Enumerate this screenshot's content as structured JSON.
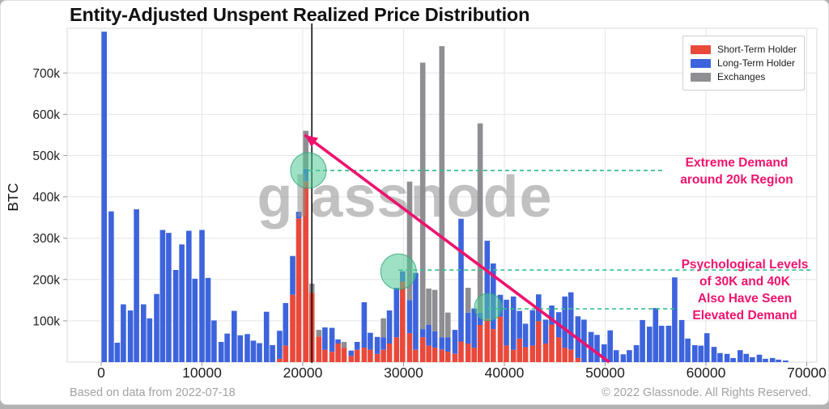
{
  "title": "Entity-Adjusted Unspent Realized Price Distribution",
  "watermark": "glassnode",
  "footer": {
    "left": "Based on data from 2022-07-18",
    "right": "© 2022 Glassnode. All Rights Reserved."
  },
  "legend": [
    {
      "label": "Short-Term Holder",
      "color": "#e9493b"
    },
    {
      "label": "Long-Term Holder",
      "color": "#3d64dd"
    },
    {
      "label": "Exchanges",
      "color": "#8e8e93"
    }
  ],
  "annotations": [
    {
      "text": "Extreme Demand\naround 20k Region"
    },
    {
      "text": "Psychological Levels\nof 30K and 40K\nAlso Have Seen\nElevated Demand"
    }
  ],
  "colors": {
    "short_term": "#e9493b",
    "long_term": "#3d64dd",
    "exchanges": "#8e8e93",
    "pink_accent": "#ef116e",
    "teal_accent": "#35c08d",
    "gridline": "#e5e5e5",
    "frame": "#d9d9d9",
    "tick_text": "#1e1e1e",
    "watermark": "#8f8f8f"
  },
  "chart_data": {
    "type": "bar",
    "stacked": true,
    "ylabel": "BTC",
    "xlabel": "",
    "legend_position": "top-right",
    "grid": true,
    "xlim": [
      -3400,
      71100
    ],
    "ylim_kbtc": [
      0,
      810
    ],
    "x_ticks": [
      {
        "v": 0,
        "label": "0"
      },
      {
        "v": 10000,
        "label": "10000"
      },
      {
        "v": 20000,
        "label": "20000"
      },
      {
        "v": 30000,
        "label": "30000"
      },
      {
        "v": 40000,
        "label": "40000"
      },
      {
        "v": 50000,
        "label": "50000"
      },
      {
        "v": 60000,
        "label": "60000"
      },
      {
        "v": 70000,
        "label": "70000"
      }
    ],
    "y_ticks_kbtc": [
      {
        "v": 100,
        "label": "100k"
      },
      {
        "v": 200,
        "label": "200k"
      },
      {
        "v": 300,
        "label": "300k"
      },
      {
        "v": 400,
        "label": "400k"
      },
      {
        "v": 500,
        "label": "500k"
      },
      {
        "v": 600,
        "label": "600k"
      },
      {
        "v": 700,
        "label": "700k"
      }
    ],
    "series_names": [
      "Short-Term Holder",
      "Long-Term Holder",
      "Exchanges"
    ],
    "bars_note": "each bar: [price_usd, short_term_kbtc, long_term_kbtc, exchanges_kbtc], stacked red/blue/gray bottom-to-top",
    "bars": [
      [
        300,
        0,
        800,
        0
      ],
      [
        1000,
        0,
        365,
        0
      ],
      [
        1600,
        0,
        47,
        0
      ],
      [
        2200,
        0,
        140,
        0
      ],
      [
        2900,
        0,
        125,
        0
      ],
      [
        3500,
        0,
        370,
        0
      ],
      [
        4200,
        0,
        140,
        0
      ],
      [
        4800,
        0,
        106,
        0
      ],
      [
        5500,
        0,
        165,
        0
      ],
      [
        6100,
        0,
        320,
        0
      ],
      [
        6700,
        0,
        313,
        0
      ],
      [
        7400,
        0,
        223,
        0
      ],
      [
        8000,
        0,
        285,
        0
      ],
      [
        8700,
        0,
        318,
        0
      ],
      [
        9300,
        0,
        202,
        0
      ],
      [
        10000,
        0,
        320,
        0
      ],
      [
        10600,
        0,
        204,
        0
      ],
      [
        11200,
        0,
        101,
        0
      ],
      [
        11900,
        0,
        49,
        0
      ],
      [
        12500,
        0,
        69,
        0
      ],
      [
        13200,
        0,
        124,
        0
      ],
      [
        13800,
        0,
        65,
        0
      ],
      [
        14500,
        0,
        68,
        0
      ],
      [
        15100,
        0,
        52,
        0
      ],
      [
        15700,
        0,
        46,
        0
      ],
      [
        16400,
        0,
        122,
        0
      ],
      [
        17000,
        0,
        41,
        0
      ],
      [
        17700,
        8,
        68,
        0
      ],
      [
        18300,
        40,
        103,
        0
      ],
      [
        19000,
        163,
        94,
        0
      ],
      [
        19600,
        348,
        16,
        0
      ],
      [
        20300,
        438,
        30,
        92
      ],
      [
        20900,
        168,
        0,
        22
      ],
      [
        21600,
        62,
        0,
        16
      ],
      [
        22200,
        30,
        54,
        0
      ],
      [
        22900,
        25,
        58,
        0
      ],
      [
        23500,
        45,
        10,
        0
      ],
      [
        24100,
        35,
        0,
        14
      ],
      [
        24800,
        15,
        13,
        0
      ],
      [
        25400,
        30,
        19,
        0
      ],
      [
        26100,
        35,
        110,
        0
      ],
      [
        26700,
        30,
        41,
        0
      ],
      [
        27400,
        20,
        41,
        0
      ],
      [
        28000,
        30,
        30,
        46
      ],
      [
        28600,
        45,
        80,
        0
      ],
      [
        29300,
        60,
        120,
        0
      ],
      [
        29900,
        195,
        25,
        0
      ],
      [
        30600,
        70,
        80,
        287
      ],
      [
        31200,
        30,
        186,
        0
      ],
      [
        31900,
        60,
        20,
        645
      ],
      [
        32500,
        40,
        50,
        88
      ],
      [
        33100,
        35,
        40,
        100
      ],
      [
        33800,
        30,
        30,
        705
      ],
      [
        34400,
        25,
        35,
        60
      ],
      [
        35100,
        20,
        58,
        0
      ],
      [
        35700,
        50,
        297,
        0
      ],
      [
        36400,
        45,
        75,
        60
      ],
      [
        37000,
        35,
        95,
        0
      ],
      [
        37600,
        90,
        30,
        458
      ],
      [
        38300,
        105,
        189,
        0
      ],
      [
        38900,
        80,
        159,
        0
      ],
      [
        39600,
        110,
        53,
        0
      ],
      [
        40200,
        40,
        111,
        0
      ],
      [
        40900,
        30,
        129,
        0
      ],
      [
        41500,
        57,
        67,
        0
      ],
      [
        42100,
        36,
        57,
        0
      ],
      [
        42800,
        40,
        86,
        0
      ],
      [
        43400,
        99,
        65,
        0
      ],
      [
        44100,
        45,
        58,
        0
      ],
      [
        44700,
        91,
        46,
        0
      ],
      [
        45400,
        60,
        61,
        0
      ],
      [
        46000,
        35,
        124,
        0
      ],
      [
        46600,
        30,
        139,
        0
      ],
      [
        47300,
        10,
        101,
        0
      ],
      [
        47900,
        0,
        103,
        0
      ],
      [
        48600,
        0,
        73,
        0
      ],
      [
        49200,
        0,
        66,
        0
      ],
      [
        49900,
        0,
        43,
        0
      ],
      [
        50500,
        0,
        77,
        0
      ],
      [
        51100,
        0,
        29,
        0
      ],
      [
        51800,
        0,
        19,
        0
      ],
      [
        52400,
        0,
        29,
        0
      ],
      [
        53100,
        0,
        41,
        0
      ],
      [
        53700,
        0,
        102,
        0
      ],
      [
        54400,
        0,
        86,
        0
      ],
      [
        55000,
        0,
        131,
        0
      ],
      [
        55600,
        0,
        88,
        0
      ],
      [
        56300,
        0,
        88,
        0
      ],
      [
        56900,
        0,
        205,
        0
      ],
      [
        57600,
        0,
        102,
        0
      ],
      [
        58200,
        0,
        57,
        0
      ],
      [
        58900,
        0,
        41,
        0
      ],
      [
        59500,
        0,
        40,
        0
      ],
      [
        60100,
        0,
        70,
        0
      ],
      [
        60800,
        0,
        37,
        0
      ],
      [
        61400,
        0,
        22,
        0
      ],
      [
        62100,
        0,
        20,
        0
      ],
      [
        62700,
        0,
        10,
        0
      ],
      [
        63400,
        0,
        29,
        0
      ],
      [
        64000,
        0,
        20,
        0
      ],
      [
        64600,
        0,
        12,
        0
      ],
      [
        65300,
        0,
        18,
        0
      ],
      [
        65900,
        0,
        8,
        0
      ],
      [
        66600,
        0,
        10,
        0
      ],
      [
        67200,
        0,
        6,
        0
      ],
      [
        67900,
        0,
        4,
        0
      ]
    ],
    "price_line_usd": 20900,
    "arrow": {
      "from_price": 50400,
      "from_kbtc": 0,
      "to_price": 20200,
      "to_kbtc": 550
    },
    "highlight_circles": [
      {
        "price": 20560,
        "kbtc": 464,
        "r": 22
      },
      {
        "price": 29500,
        "kbtc": 219,
        "r": 22
      },
      {
        "price": 38400,
        "kbtc": 133,
        "r": 17
      }
    ],
    "dashed_lines": [
      {
        "kbtc": 464,
        "from_price": 20560,
        "to_price": 55700
      },
      {
        "kbtc": 223,
        "from_price": 29500,
        "to_price": 70700
      },
      {
        "kbtc": 129,
        "from_price": 38400,
        "to_price": 57100
      }
    ]
  }
}
